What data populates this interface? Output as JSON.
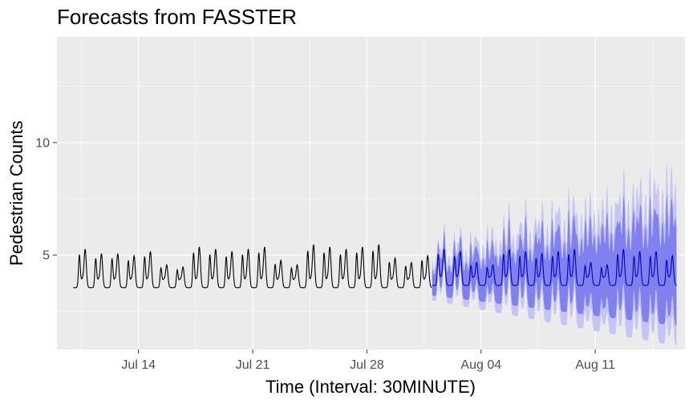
{
  "chart_data": {
    "type": "line",
    "title": "Forecasts from FASSTER",
    "xlabel": "Time (Interval: 30MINUTE)",
    "ylabel": "Pedestrian Counts",
    "x_ticks": [
      "Jul 14",
      "Jul 21",
      "Jul 28",
      "Aug 04",
      "Aug 11"
    ],
    "y_ticks": [
      5,
      10
    ],
    "xlim": [
      "2019-07-09T00:00",
      "2019-08-16T12:00"
    ],
    "ylim": [
      0.8,
      14.7
    ],
    "grid": true,
    "legend": "none",
    "history": {
      "start": "2019-07-10T00:00",
      "end": "2019-07-31T23:30",
      "interval_minutes": 30,
      "level": 4.5,
      "daily_peaks": [
        1.7,
        1.5,
        1.5,
        1.4,
        1.6,
        1.0,
        0.9,
        1.8,
        1.7,
        1.6,
        1.7,
        1.8,
        1.2,
        1.0,
        1.9,
        1.8,
        1.7,
        1.8,
        1.9,
        1.3,
        1.1,
        1.4
      ]
    },
    "forecast": {
      "start": "2019-08-01T00:00",
      "end": "2019-08-15T23:30",
      "interval_minutes": 30,
      "level": 4.6,
      "daily_peaks": [
        1.6,
        1.5,
        1.0,
        0.9,
        1.6,
        1.5,
        1.4,
        1.5,
        1.6,
        1.0,
        0.9,
        1.6,
        1.5,
        1.5,
        1.3
      ],
      "intervals": [
        {
          "level": 80,
          "width_start": 0.6,
          "width_end": 2.4
        },
        {
          "level": 95,
          "width_start": 0.9,
          "width_end": 3.6
        }
      ]
    },
    "colors": {
      "panel": "#ebebeb",
      "grid": "#ffffff",
      "history": "#000000",
      "forecast": "#0000cc",
      "pi80": "#8080ee",
      "pi95": "#c4c4f5"
    }
  }
}
